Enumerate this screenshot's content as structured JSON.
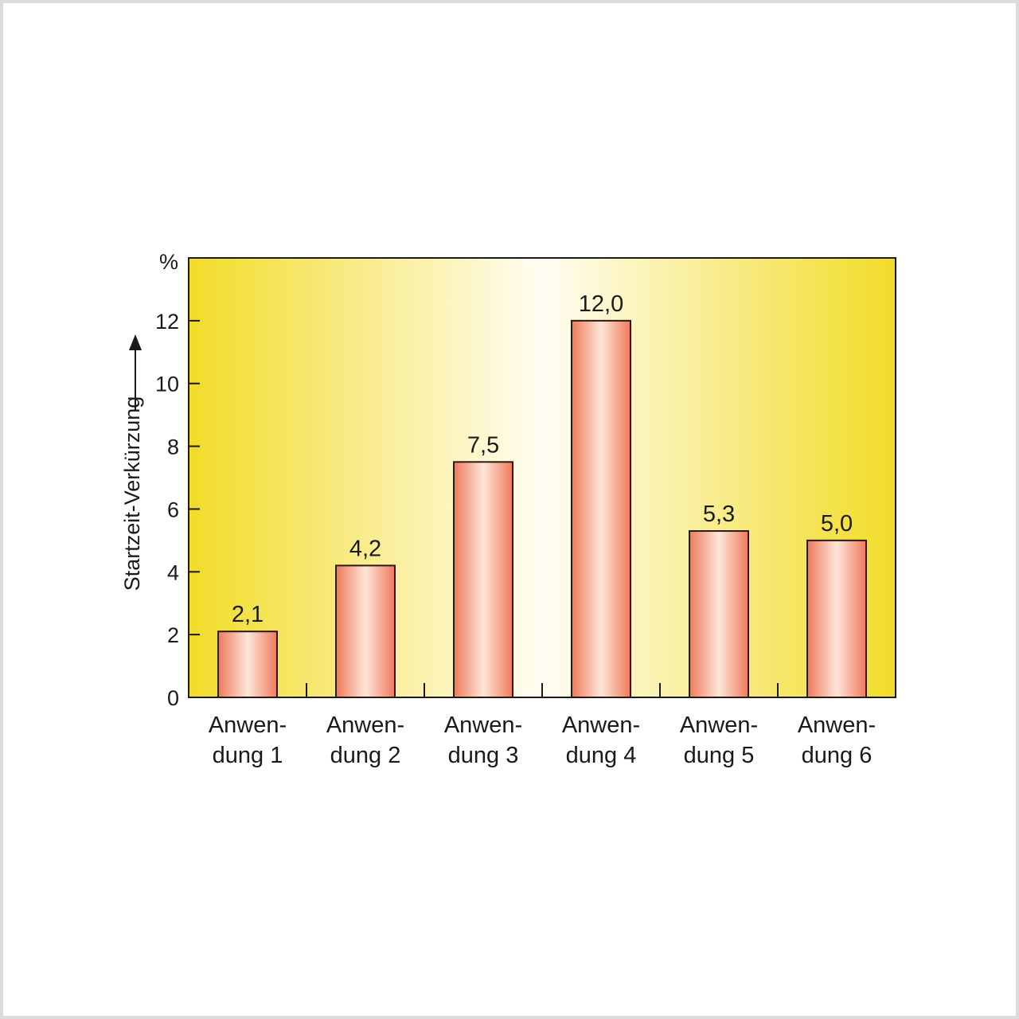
{
  "chart_data": {
    "type": "bar",
    "categories": [
      [
        "Anwen-",
        "dung 1"
      ],
      [
        "Anwen-",
        "dung 2"
      ],
      [
        "Anwen-",
        "dung 3"
      ],
      [
        "Anwen-",
        "dung 4"
      ],
      [
        "Anwen-",
        "dung 5"
      ],
      [
        "Anwen-",
        "dung 6"
      ]
    ],
    "values": [
      2.1,
      4.2,
      7.5,
      12.0,
      5.3,
      5.0
    ],
    "value_labels": [
      "2,1",
      "4,2",
      "7,5",
      "12,0",
      "5,3",
      "5,0"
    ],
    "ylabel": "Startzeit-Verkürzung",
    "yunit": "%",
    "ylim": [
      0,
      14
    ],
    "yticks": [
      0,
      2,
      4,
      6,
      8,
      10,
      12
    ],
    "grid": false,
    "legend": "none",
    "colors": {
      "bar_edge": "#f07a5c",
      "bar_center": "#fde6d8",
      "bar_outline": "#2a1a10",
      "bg_edge": "#f2dc28",
      "bg_center": "#fffdf3",
      "axis": "#1a1a1a"
    }
  }
}
